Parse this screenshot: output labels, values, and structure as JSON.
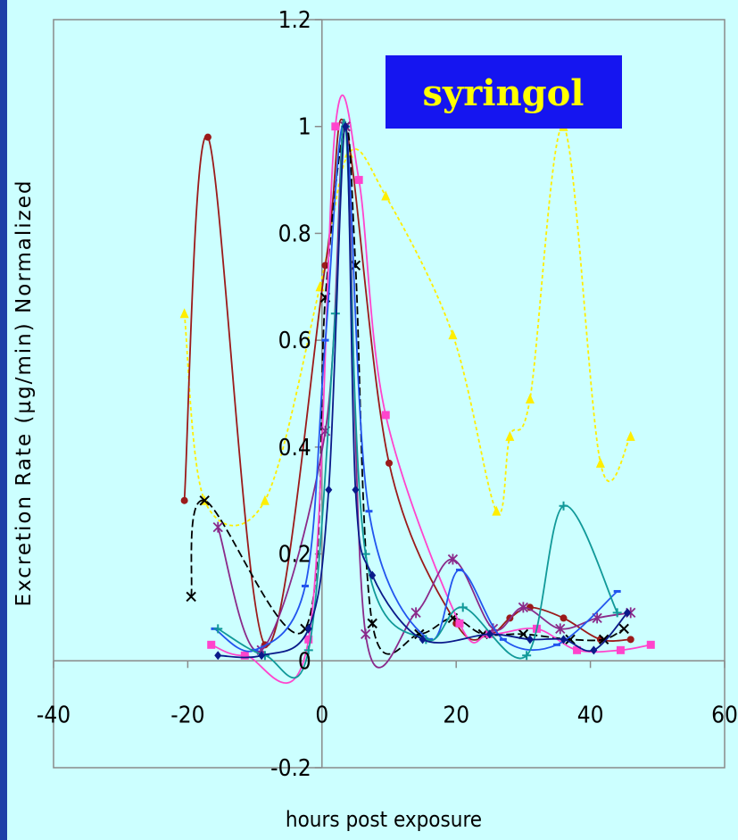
{
  "chart_data": {
    "type": "line",
    "title": "syringol",
    "xlabel": "hours post exposure",
    "ylabel": "Excretion Rate (µg/min) Normalized",
    "xlim": [
      -40,
      60
    ],
    "ylim": [
      -0.2,
      1.2
    ],
    "xticks": [
      "-40",
      "-20",
      "0",
      "20",
      "40",
      "60"
    ],
    "yticks": [
      "-0.2",
      "0",
      "0.2",
      "0.4",
      "0.6",
      "0.8",
      "1",
      "1.2"
    ],
    "grid": false,
    "legend": "none",
    "series": [
      {
        "color": "#ffee00",
        "marker": "triangle",
        "dash": true,
        "x": [
          -20.5,
          -17.5,
          -8.5,
          -0.3,
          4,
          9.5,
          19.5,
          26,
          28,
          31,
          36,
          41.5,
          46
        ],
        "y": [
          0.65,
          0.3,
          0.3,
          0.7,
          0.95,
          0.87,
          0.61,
          0.28,
          0.42,
          0.49,
          1.0,
          0.37,
          0.42
        ]
      },
      {
        "color": "#9b1a1a",
        "marker": "circle",
        "dash": false,
        "x": [
          -20.5,
          -17,
          -8.5,
          0.5,
          3.5,
          10,
          20,
          25,
          28,
          31,
          36,
          41.5,
          46
        ],
        "y": [
          0.3,
          0.98,
          0.03,
          0.74,
          1.0,
          0.37,
          0.07,
          0.05,
          0.08,
          0.1,
          0.08,
          0.04,
          0.04
        ]
      },
      {
        "color": "#000000",
        "marker": "cross",
        "dash": true,
        "x": [
          -19.5,
          -17.5,
          -2.5,
          0.5,
          3.5,
          5,
          7.5,
          14.5,
          19.5,
          24,
          30,
          37,
          42,
          45
        ],
        "y": [
          0.12,
          0.3,
          0.06,
          0.68,
          1.0,
          0.74,
          0.07,
          0.05,
          0.08,
          0.05,
          0.05,
          0.04,
          0.04,
          0.06
        ]
      },
      {
        "color": "#ff44cc",
        "marker": "square",
        "dash": false,
        "x": [
          -16.5,
          -11.5,
          -2,
          2,
          5.5,
          9.5,
          20.5,
          25,
          32,
          38,
          44.5,
          49
        ],
        "y": [
          0.03,
          0.01,
          0.04,
          1.0,
          0.9,
          0.46,
          0.07,
          0.05,
          0.06,
          0.02,
          0.02,
          0.03
        ]
      },
      {
        "color": "#8a2a8a",
        "marker": "star",
        "dash": false,
        "x": [
          -15.5,
          -9,
          0.5,
          3.5,
          6.5,
          14,
          19.5,
          25.5,
          30,
          35.5,
          41,
          46
        ],
        "y": [
          0.25,
          0.02,
          0.43,
          1.0,
          0.05,
          0.09,
          0.19,
          0.06,
          0.1,
          0.06,
          0.08,
          0.09
        ]
      },
      {
        "color": "#2255ee",
        "marker": "dash",
        "dash": false,
        "x": [
          -16,
          -10,
          -2.5,
          0.5,
          3.5,
          7,
          16,
          20.5,
          27,
          35,
          44
        ],
        "y": [
          0.06,
          0.02,
          0.14,
          0.6,
          1.0,
          0.28,
          0.04,
          0.17,
          0.04,
          0.03,
          0.13
        ]
      },
      {
        "color": "#119999",
        "marker": "plus",
        "dash": false,
        "x": [
          -15.5,
          -8.5,
          -2,
          2,
          3.5,
          6.5,
          15.5,
          21,
          30.5,
          36,
          44
        ],
        "y": [
          0.06,
          0.01,
          0.02,
          0.65,
          1.0,
          0.2,
          0.04,
          0.1,
          0.01,
          0.29,
          0.09
        ]
      },
      {
        "color": "#0a1a8a",
        "marker": "diamond",
        "dash": false,
        "x": [
          -15.5,
          -9,
          -2,
          1,
          3.5,
          5,
          7.5,
          15,
          25,
          31,
          36,
          40.5,
          45.5
        ],
        "y": [
          0.01,
          0.01,
          0.06,
          0.32,
          1.0,
          0.32,
          0.16,
          0.04,
          0.05,
          0.04,
          0.04,
          0.02,
          0.09
        ]
      }
    ]
  }
}
